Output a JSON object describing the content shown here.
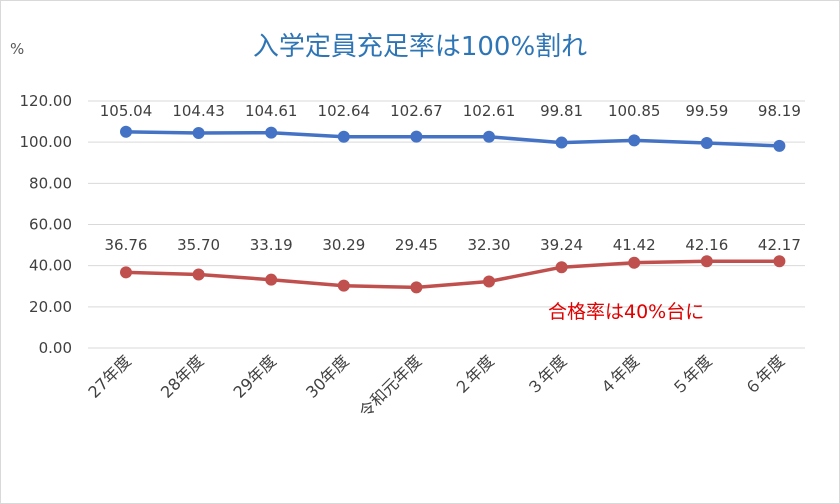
{
  "chart_data": {
    "type": "line",
    "title": "入学定員充足率は100%割れ",
    "ylabel": "%",
    "xlabel": "",
    "ylim": [
      0,
      120
    ],
    "yticks": [
      "0.00",
      "20.00",
      "40.00",
      "60.00",
      "80.00",
      "100.00",
      "120.00"
    ],
    "categories": [
      "27年度",
      "28年度",
      "29年度",
      "30年度",
      "令和元年度",
      "２年度",
      "３年度",
      "４年度",
      "５年度",
      "６年度"
    ],
    "series": [
      {
        "values": [
          105.04,
          104.43,
          104.61,
          102.64,
          102.67,
          102.61,
          99.81,
          100.85,
          99.59,
          98.19
        ],
        "labels": [
          "105.04",
          "104.43",
          "104.61",
          "102.64",
          "102.67",
          "102.61",
          "99.81",
          "100.85",
          "99.59",
          "98.19"
        ],
        "color": "#4472c4"
      },
      {
        "values": [
          36.76,
          35.7,
          33.19,
          30.29,
          29.45,
          32.3,
          39.24,
          41.42,
          42.16,
          42.17
        ],
        "labels": [
          "36.76",
          "35.70",
          "33.19",
          "30.29",
          "29.45",
          "32.30",
          "39.24",
          "41.42",
          "42.16",
          "42.17"
        ],
        "color": "#c0504d"
      }
    ],
    "annotations": [
      "合格率は40%台に"
    ],
    "grid": true,
    "legend": "none"
  }
}
